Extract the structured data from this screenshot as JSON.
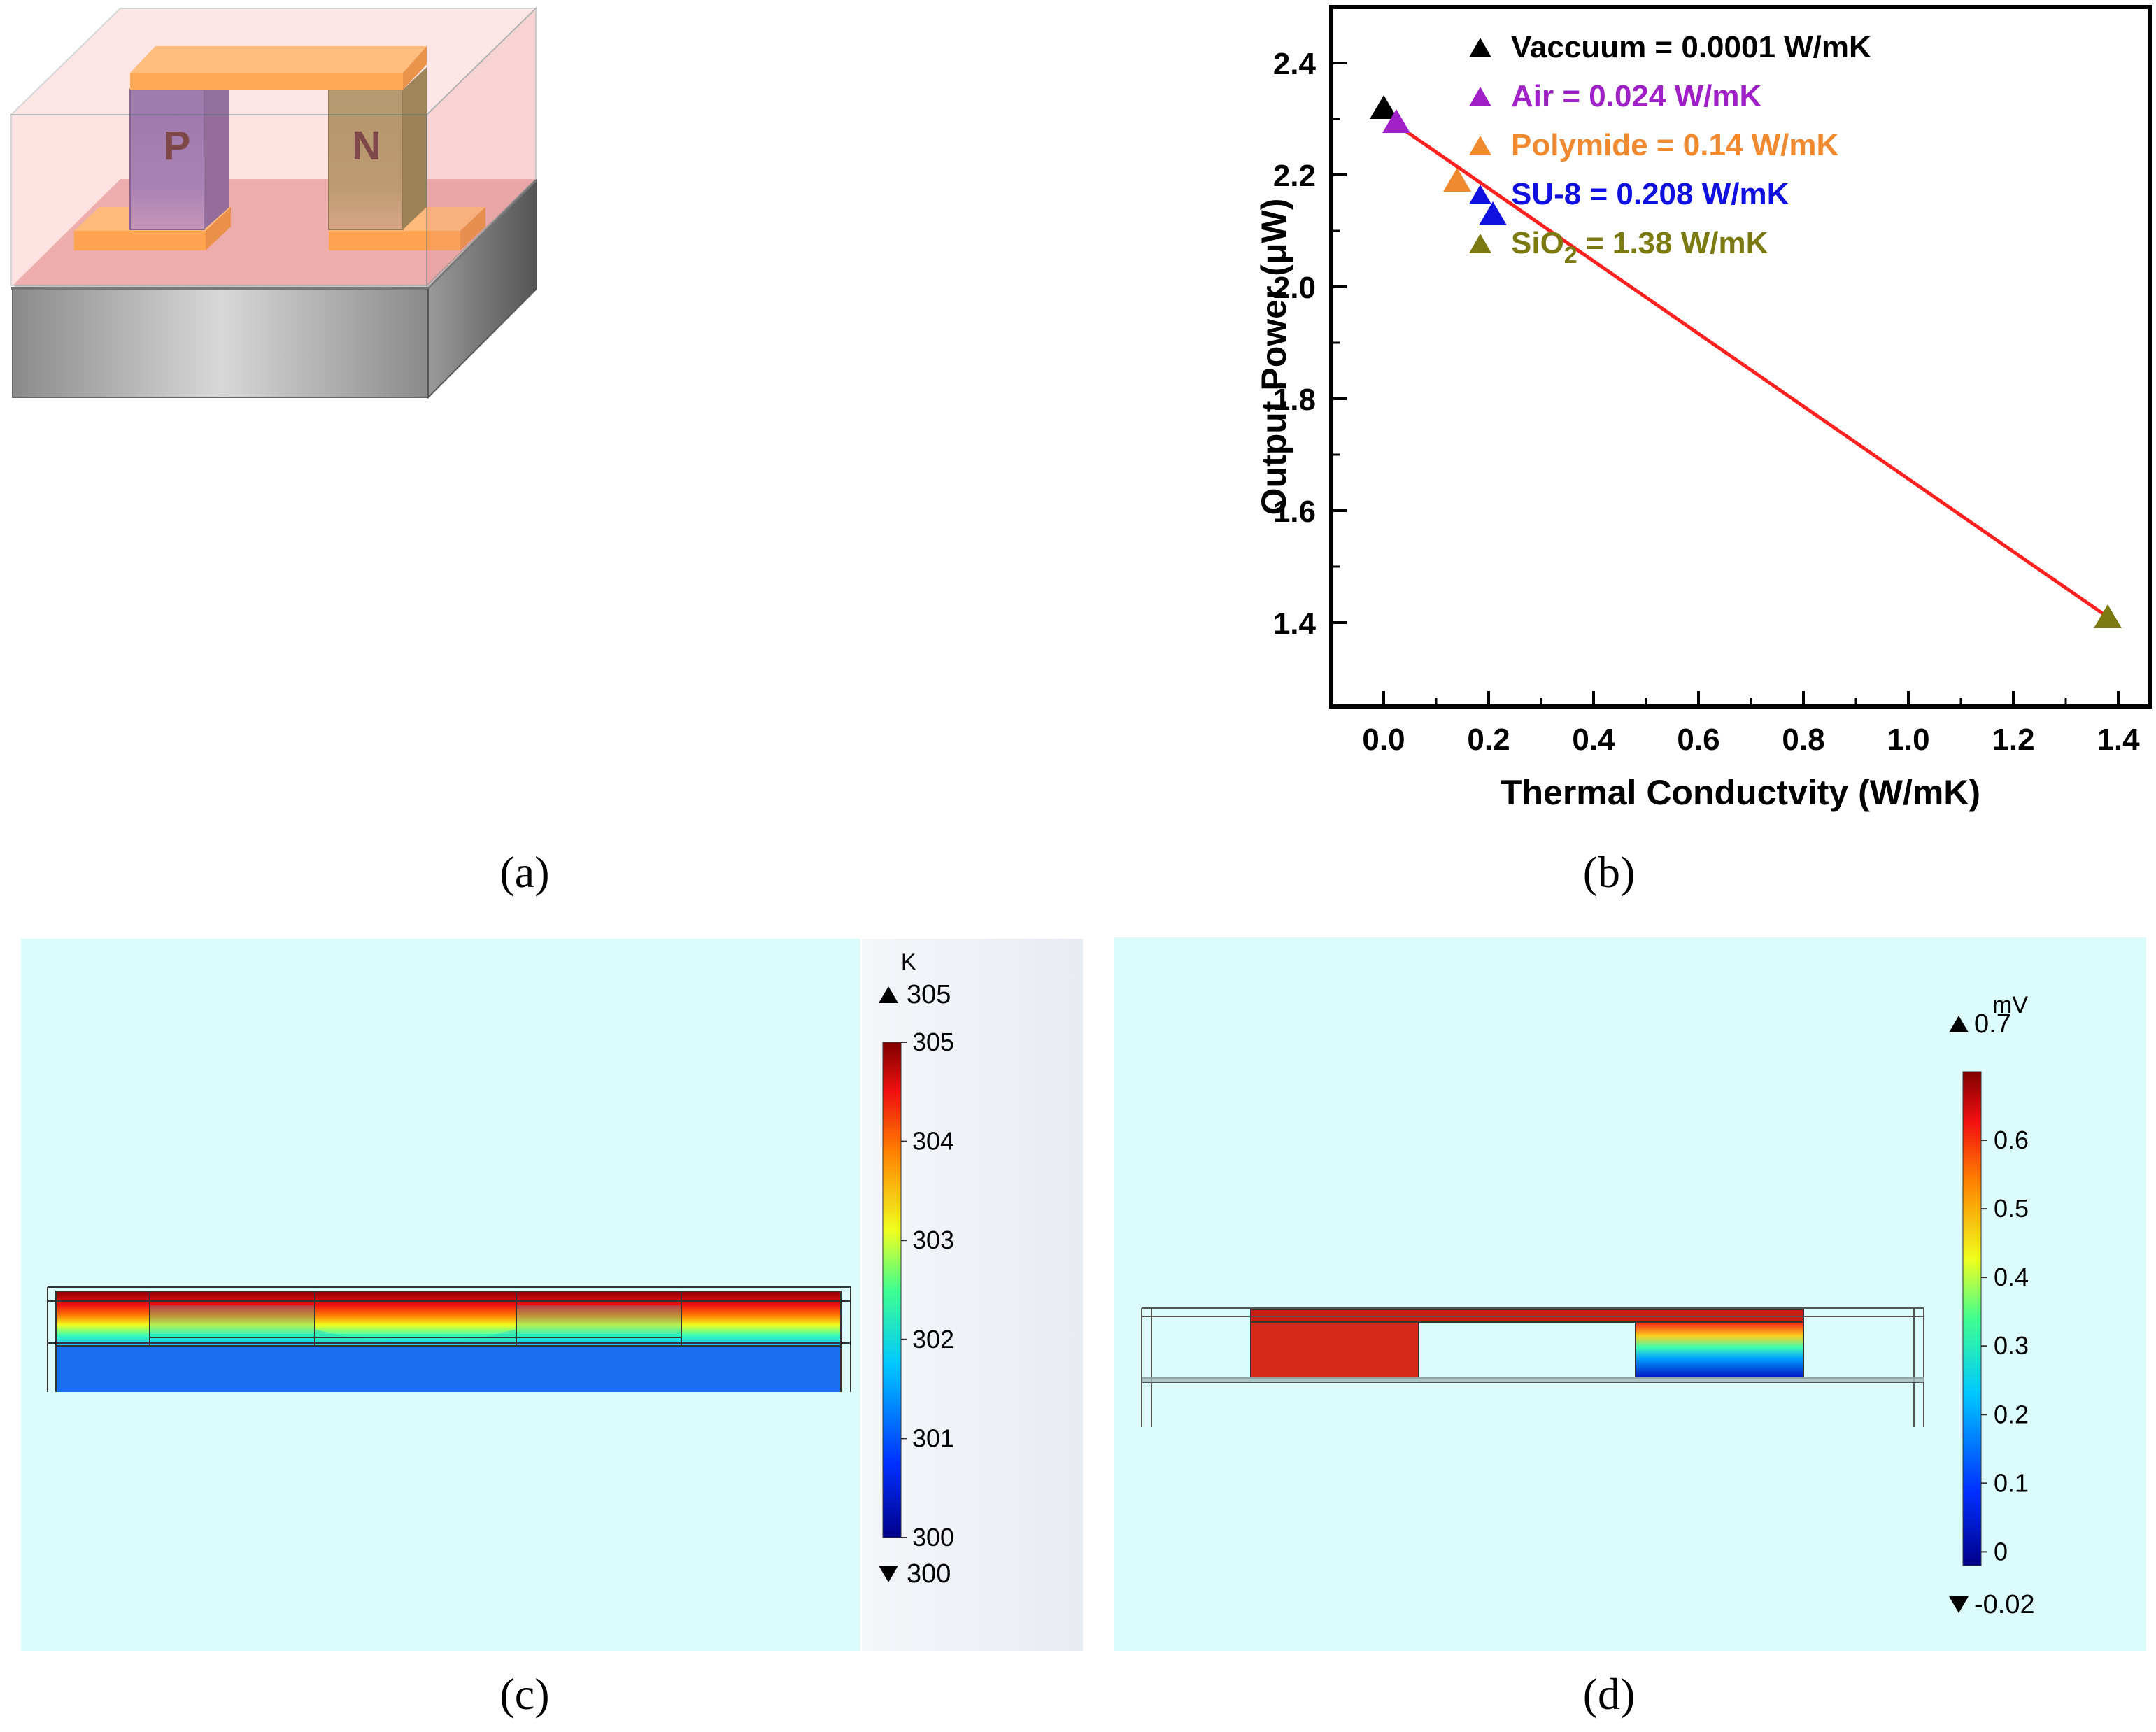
{
  "panel_a": {
    "p_label": "P",
    "n_label": "N"
  },
  "captions": {
    "a": "(a)",
    "b": "(b)",
    "c": "(c)",
    "d": "(d)"
  },
  "chart_data": {
    "type": "scatter",
    "title": "",
    "xlabel": "Thermal Conductvity (W/mK)",
    "ylabel": "Output Power (μW)",
    "xlim": [
      -0.1,
      1.46
    ],
    "ylim": [
      1.25,
      2.5
    ],
    "x_ticks": [
      "0.0",
      "0.2",
      "0.4",
      "0.6",
      "0.8",
      "1.0",
      "1.2",
      "1.4"
    ],
    "y_ticks": [
      "1.4",
      "1.6",
      "1.8",
      "2.0",
      "2.2",
      "2.4"
    ],
    "x_tick_values": [
      0,
      0.2,
      0.4,
      0.6,
      0.8,
      1.0,
      1.2,
      1.4
    ],
    "y_tick_values": [
      1.4,
      1.6,
      1.8,
      2.0,
      2.2,
      2.4
    ],
    "fit_line": {
      "x": [
        0.024,
        1.38
      ],
      "y": [
        2.29,
        1.41
      ],
      "color": "#ff2020"
    },
    "series": [
      {
        "name": "Vaccuum = 0.0001 W/mK",
        "x": [
          0.0001
        ],
        "y": [
          2.32
        ],
        "color": "#000000"
      },
      {
        "name": "Air = 0.024 W/mK",
        "x": [
          0.024
        ],
        "y": [
          2.295
        ],
        "color": "#a020c8"
      },
      {
        "name": "Polymide = 0.14 W/mK",
        "x": [
          0.14
        ],
        "y": [
          2.19
        ],
        "color": "#f08a30"
      },
      {
        "name": "SU-8 = 0.208 W/mK",
        "x": [
          0.208
        ],
        "y": [
          2.13
        ],
        "color": "#1010e0"
      },
      {
        "name": "SiO2 = 1.38 W/mK",
        "x": [
          1.38
        ],
        "y": [
          1.41
        ],
        "color": "#7a7a10"
      }
    ],
    "legend": [
      {
        "text": "Vaccuum = 0.0001 W/mK",
        "color": "#000000"
      },
      {
        "text": "Air = 0.024 W/mK",
        "color": "#a020c8"
      },
      {
        "text": "Polymide = 0.14 W/mK",
        "color": "#f08a30"
      },
      {
        "text": "SU-8 = 0.208 W/mK",
        "color": "#1010e0"
      },
      {
        "text_main": "SiO",
        "text_sub": "2",
        "text_rest": " = 1.38 W/mK",
        "color": "#7a7a10"
      }
    ],
    "legend_position": "top-right"
  },
  "panel_c": {
    "unit": "K",
    "max_marker": "305",
    "min_marker": "300",
    "ticks": [
      "305",
      "304",
      "303",
      "302",
      "301",
      "300"
    ]
  },
  "panel_d": {
    "unit": "mV",
    "max_marker": "0.7",
    "min_marker": "-0.02",
    "ticks": [
      "0.6",
      "0.5",
      "0.4",
      "0.3",
      "0.2",
      "0.1",
      "0"
    ]
  }
}
